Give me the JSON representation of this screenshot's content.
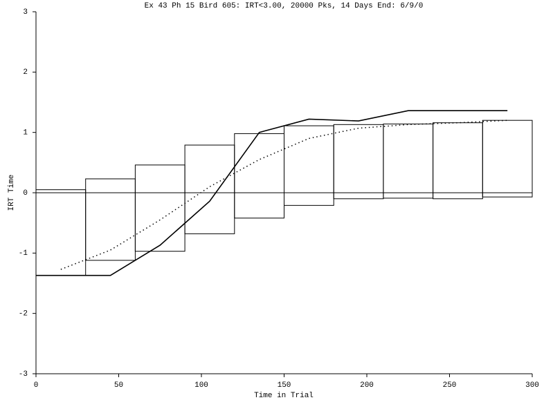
{
  "chart_data": {
    "type": "box_line",
    "title": "Ex 43 Ph 15 Bird 605: IRT<3.00, 20000 Pks, 14 Days End: 6/9/0",
    "x_label": "Time in Trial",
    "y_label": "IRT Time",
    "xlim": [
      0,
      300
    ],
    "xticks": [
      0,
      50,
      100,
      150,
      200,
      250,
      300
    ],
    "ylim": [
      -3,
      3
    ],
    "yticks": [
      -3,
      -2,
      -1,
      0,
      1,
      2,
      3
    ],
    "reference_line": 0,
    "color": "#000000",
    "boxes": {
      "bins": [
        0,
        30,
        60,
        90,
        120,
        150,
        180,
        210,
        240,
        270,
        300
      ],
      "upper": [
        0.05,
        0.23,
        0.46,
        0.79,
        0.98,
        1.11,
        1.13,
        1.14,
        1.16,
        1.2
      ],
      "lower": [
        -1.37,
        -1.12,
        -0.97,
        -0.68,
        -0.42,
        -0.21,
        -0.1,
        -0.09,
        -0.1,
        -0.07
      ]
    },
    "series": [
      {
        "style": "solid",
        "x": [
          0,
          45,
          75,
          105,
          135,
          165,
          195,
          225,
          285
        ],
        "values": [
          -1.37,
          -1.37,
          -0.87,
          -0.14,
          1.0,
          1.22,
          1.19,
          1.36,
          1.36
        ]
      },
      {
        "style": "dotted",
        "x": [
          15,
          45,
          75,
          105,
          135,
          165,
          195,
          225,
          255,
          285
        ],
        "values": [
          -1.27,
          -0.95,
          -0.45,
          0.1,
          0.55,
          0.9,
          1.07,
          1.13,
          1.16,
          1.2
        ]
      }
    ]
  }
}
